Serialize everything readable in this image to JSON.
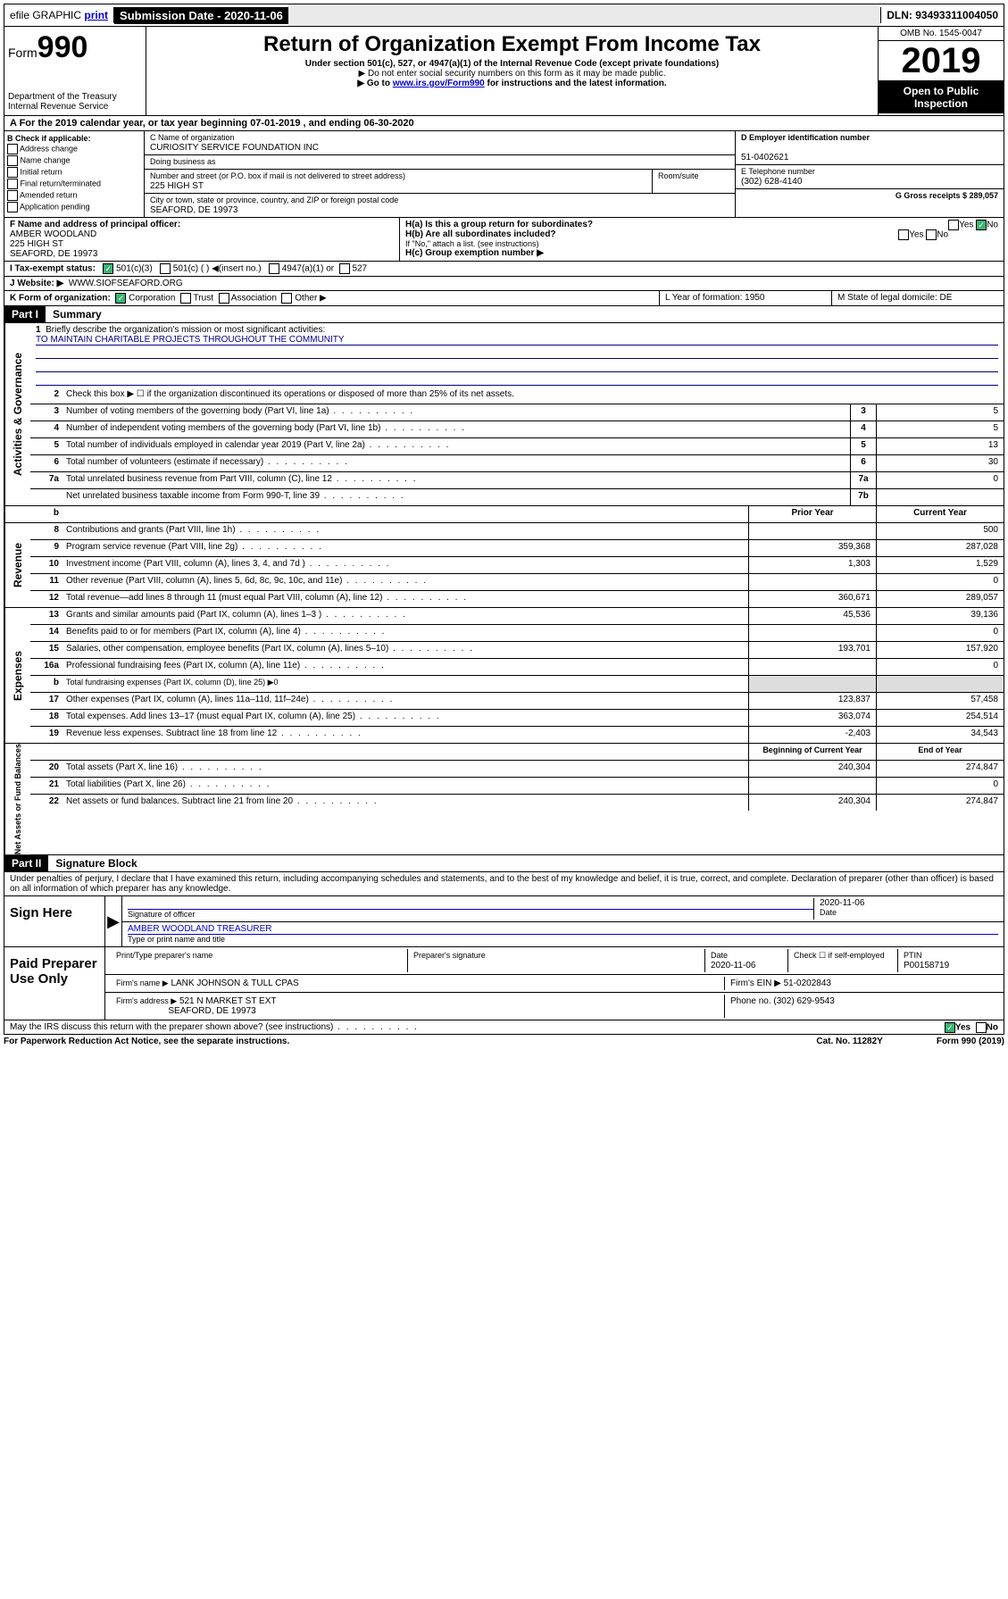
{
  "topbar": {
    "efile": "efile GRAPHIC",
    "print": "print",
    "submission_label": "Submission Date - 2020-11-06",
    "dln": "DLN: 93493311004050"
  },
  "header": {
    "form_prefix": "Form",
    "form_number": "990",
    "dept": "Department of the Treasury\nInternal Revenue Service",
    "title": "Return of Organization Exempt From Income Tax",
    "sub": "Under section 501(c), 527, or 4947(a)(1) of the Internal Revenue Code (except private foundations)",
    "note1": "▶ Do not enter social security numbers on this form as it may be made public.",
    "note2_pre": "▶ Go to ",
    "note2_link": "www.irs.gov/Form990",
    "note2_post": " for instructions and the latest information.",
    "omb": "OMB No. 1545-0047",
    "year": "2019",
    "open": "Open to Public Inspection"
  },
  "row_a": "A For the 2019 calendar year, or tax year beginning 07-01-2019   , and ending 06-30-2020",
  "col_b": {
    "head": "B Check if applicable:",
    "items": [
      "Address change",
      "Name change",
      "Initial return",
      "Final return/terminated",
      "Amended return",
      "Application pending"
    ]
  },
  "col_c": {
    "name_label": "C Name of organization",
    "name": "CURIOSITY SERVICE FOUNDATION INC",
    "dba_label": "Doing business as",
    "addr_label": "Number and street (or P.O. box if mail is not delivered to street address)",
    "room_label": "Room/suite",
    "addr": "225 HIGH ST",
    "city_label": "City or town, state or province, country, and ZIP or foreign postal code",
    "city": "SEAFORD, DE  19973"
  },
  "col_d": {
    "ein_label": "D Employer identification number",
    "ein": "51-0402621",
    "tel_label": "E Telephone number",
    "tel": "(302) 628-4140",
    "gross_label": "G Gross receipts $ 289,057"
  },
  "row_f": {
    "f_label": "F  Name and address of principal officer:",
    "f_name": "AMBER WOODLAND",
    "f_addr1": "225 HIGH ST",
    "f_addr2": "SEAFORD, DE  19973",
    "ha": "H(a)  Is this a group return for subordinates?",
    "hb": "H(b)  Are all subordinates included?",
    "hb_note": "If \"No,\" attach a list. (see instructions)",
    "hc": "H(c)  Group exemption number ▶",
    "yes": "Yes",
    "no": "No"
  },
  "row_i": {
    "label": "I    Tax-exempt status:",
    "opt1": "501(c)(3)",
    "opt2": "501(c) (  ) ◀(insert no.)",
    "opt3": "4947(a)(1) or",
    "opt4": "527"
  },
  "row_j": {
    "label": "J    Website: ▶",
    "val": "WWW.SIOFSEAFORD.ORG"
  },
  "row_k": {
    "label": "K Form of organization:",
    "opts": [
      "Corporation",
      "Trust",
      "Association",
      "Other ▶"
    ],
    "l": "L Year of formation: 1950",
    "m": "M State of legal domicile: DE"
  },
  "part1": {
    "header": "Part I",
    "title": "Summary",
    "q1": "Briefly describe the organization's mission or most significant activities:",
    "mission": "TO MAINTAIN CHARITABLE PROJECTS THROUGHOUT THE COMMUNITY",
    "q2": "Check this box ▶ ☐  if the organization discontinued its operations or disposed of more than 25% of its net assets.",
    "lines_top": [
      {
        "n": "3",
        "t": "Number of voting members of the governing body (Part VI, line 1a)",
        "box": "3",
        "v": "5"
      },
      {
        "n": "4",
        "t": "Number of independent voting members of the governing body (Part VI, line 1b)",
        "box": "4",
        "v": "5"
      },
      {
        "n": "5",
        "t": "Total number of individuals employed in calendar year 2019 (Part V, line 2a)",
        "box": "5",
        "v": "13"
      },
      {
        "n": "6",
        "t": "Total number of volunteers (estimate if necessary)",
        "box": "6",
        "v": "30"
      },
      {
        "n": "7a",
        "t": "Total unrelated business revenue from Part VIII, column (C), line 12",
        "box": "7a",
        "v": "0"
      },
      {
        "n": "",
        "t": "Net unrelated business taxable income from Form 990-T, line 39",
        "box": "7b",
        "v": ""
      }
    ],
    "prior_head": "Prior Year",
    "current_head": "Current Year",
    "sections": {
      "revenue": {
        "label": "Revenue",
        "lines": [
          {
            "n": "8",
            "t": "Contributions and grants (Part VIII, line 1h)",
            "p": "",
            "c": "500"
          },
          {
            "n": "9",
            "t": "Program service revenue (Part VIII, line 2g)",
            "p": "359,368",
            "c": "287,028"
          },
          {
            "n": "10",
            "t": "Investment income (Part VIII, column (A), lines 3, 4, and 7d )",
            "p": "1,303",
            "c": "1,529"
          },
          {
            "n": "11",
            "t": "Other revenue (Part VIII, column (A), lines 5, 6d, 8c, 9c, 10c, and 11e)",
            "p": "",
            "c": "0"
          },
          {
            "n": "12",
            "t": "Total revenue—add lines 8 through 11 (must equal Part VIII, column (A), line 12)",
            "p": "360,671",
            "c": "289,057"
          }
        ]
      },
      "expenses": {
        "label": "Expenses",
        "lines": [
          {
            "n": "13",
            "t": "Grants and similar amounts paid (Part IX, column (A), lines 1–3 )",
            "p": "45,536",
            "c": "39,136"
          },
          {
            "n": "14",
            "t": "Benefits paid to or for members (Part IX, column (A), line 4)",
            "p": "",
            "c": "0"
          },
          {
            "n": "15",
            "t": "Salaries, other compensation, employee benefits (Part IX, column (A), lines 5–10)",
            "p": "193,701",
            "c": "157,920"
          },
          {
            "n": "16a",
            "t": "Professional fundraising fees (Part IX, column (A), line 11e)",
            "p": "",
            "c": "0"
          },
          {
            "n": "b",
            "t": "Total fundraising expenses (Part IX, column (D), line 25) ▶0",
            "p": null,
            "c": null
          },
          {
            "n": "17",
            "t": "Other expenses (Part IX, column (A), lines 11a–11d, 11f–24e)",
            "p": "123,837",
            "c": "57,458"
          },
          {
            "n": "18",
            "t": "Total expenses. Add lines 13–17 (must equal Part IX, column (A), line 25)",
            "p": "363,074",
            "c": "254,514"
          },
          {
            "n": "19",
            "t": "Revenue less expenses. Subtract line 18 from line 12",
            "p": "-2,403",
            "c": "34,543"
          }
        ]
      },
      "netassets": {
        "label": "Net Assets or Fund Balances",
        "begin_head": "Beginning of Current Year",
        "end_head": "End of Year",
        "lines": [
          {
            "n": "20",
            "t": "Total assets (Part X, line 16)",
            "p": "240,304",
            "c": "274,847"
          },
          {
            "n": "21",
            "t": "Total liabilities (Part X, line 26)",
            "p": "",
            "c": "0"
          },
          {
            "n": "22",
            "t": "Net assets or fund balances. Subtract line 21 from line 20",
            "p": "240,304",
            "c": "274,847"
          }
        ]
      }
    }
  },
  "part2": {
    "header": "Part II",
    "title": "Signature Block",
    "declaration": "Under penalties of perjury, I declare that I have examined this return, including accompanying schedules and statements, and to the best of my knowledge and belief, it is true, correct, and complete. Declaration of preparer (other than officer) is based on all information of which preparer has any knowledge."
  },
  "sign": {
    "label": "Sign Here",
    "sig_officer": "Signature of officer",
    "date": "2020-11-06",
    "date_label": "Date",
    "name": "AMBER WOODLAND  TREASURER",
    "name_label": "Type or print name and title"
  },
  "paid": {
    "label": "Paid Preparer Use Only",
    "h1": "Print/Type preparer's name",
    "h2": "Preparer's signature",
    "h3": "Date",
    "h3v": "2020-11-06",
    "h4": "Check ☐ if self-employed",
    "h5": "PTIN",
    "h5v": "P00158719",
    "firm_name_label": "Firm's name    ▶",
    "firm_name": "LANK JOHNSON & TULL CPAS",
    "firm_ein": "Firm's EIN ▶ 51-0202843",
    "firm_addr_label": "Firm's address ▶",
    "firm_addr": "521 N MARKET ST EXT",
    "firm_city": "SEAFORD, DE  19973",
    "phone": "Phone no. (302) 629-9543"
  },
  "discuss": "May the IRS discuss this return with the preparer shown above? (see instructions)",
  "footer": {
    "left": "For Paperwork Reduction Act Notice, see the separate instructions.",
    "mid": "Cat. No. 11282Y",
    "right": "Form 990 (2019)"
  }
}
